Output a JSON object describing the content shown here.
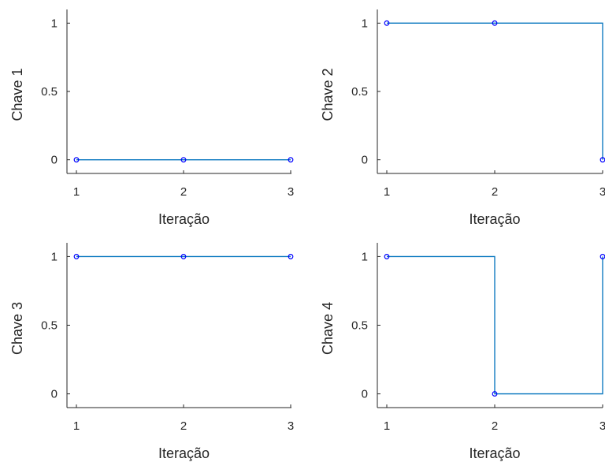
{
  "chart_data": [
    {
      "type": "line",
      "step": true,
      "title": "",
      "xlabel": "Iteração",
      "ylabel": "Chave 1",
      "x": [
        1,
        2,
        3
      ],
      "y": [
        0,
        0,
        0
      ],
      "xlim": [
        1,
        3
      ],
      "ylim": [
        -0.1,
        1.1
      ],
      "xticks": [
        "1",
        "2",
        "3"
      ],
      "yticks": [
        "0",
        "0.5",
        "1"
      ],
      "grid": false,
      "colors": {
        "line": "#0072BD",
        "marker": "#0000FF"
      }
    },
    {
      "type": "line",
      "step": true,
      "title": "",
      "xlabel": "Iteração",
      "ylabel": "Chave 2",
      "x": [
        1,
        2,
        3
      ],
      "y": [
        1,
        1,
        0
      ],
      "xlim": [
        1,
        3
      ],
      "ylim": [
        -0.1,
        1.1
      ],
      "xticks": [
        "1",
        "2",
        "3"
      ],
      "yticks": [
        "0",
        "0.5",
        "1"
      ],
      "grid": false,
      "colors": {
        "line": "#0072BD",
        "marker": "#0000FF"
      }
    },
    {
      "type": "line",
      "step": true,
      "title": "",
      "xlabel": "Iteração",
      "ylabel": "Chave 3",
      "x": [
        1,
        2,
        3
      ],
      "y": [
        1,
        1,
        1
      ],
      "xlim": [
        1,
        3
      ],
      "ylim": [
        -0.1,
        1.1
      ],
      "xticks": [
        "1",
        "2",
        "3"
      ],
      "yticks": [
        "0",
        "0.5",
        "1"
      ],
      "grid": false,
      "colors": {
        "line": "#0072BD",
        "marker": "#0000FF"
      }
    },
    {
      "type": "line",
      "step": true,
      "title": "",
      "xlabel": "Iteração",
      "ylabel": "Chave 4",
      "x": [
        1,
        2,
        3
      ],
      "y": [
        1,
        0,
        1
      ],
      "xlim": [
        1,
        3
      ],
      "ylim": [
        -0.1,
        1.1
      ],
      "xticks": [
        "1",
        "2",
        "3"
      ],
      "yticks": [
        "0",
        "0.5",
        "1"
      ],
      "grid": false,
      "colors": {
        "line": "#0072BD",
        "marker": "#0000FF"
      }
    }
  ]
}
